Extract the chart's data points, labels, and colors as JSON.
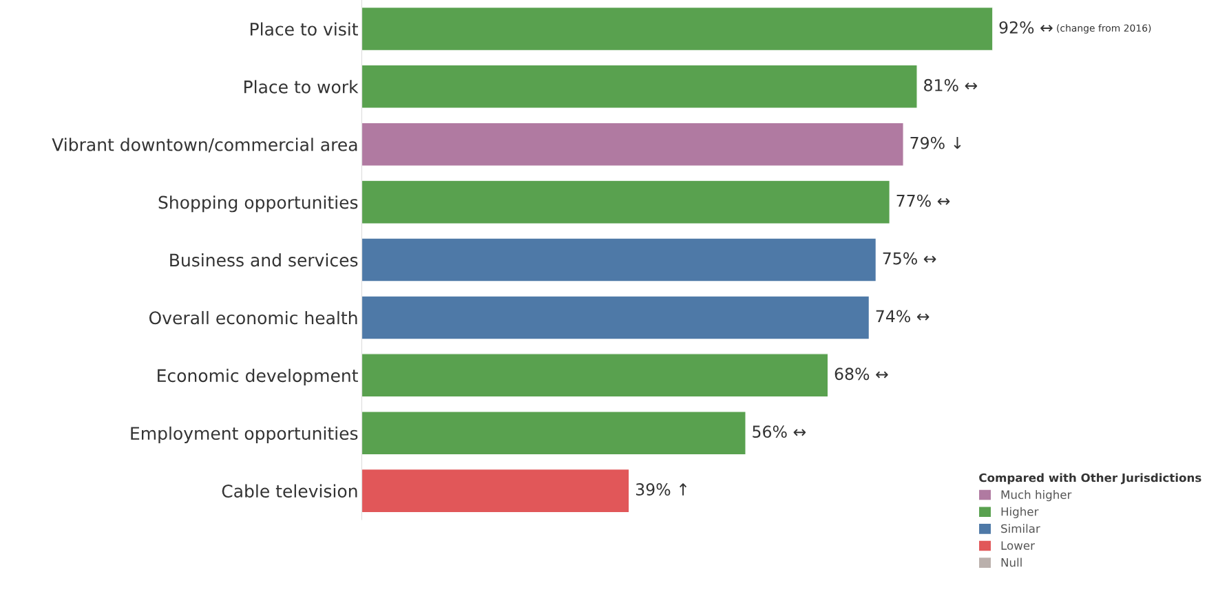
{
  "chart_data": {
    "type": "bar",
    "orientation": "horizontal",
    "categories": [
      "Place to visit",
      "Place to work",
      "Vibrant downtown/commercial area",
      "Shopping opportunities",
      "Business and services",
      "Overall economic health",
      "Economic development",
      "Employment opportunities",
      "Cable television"
    ],
    "series": [
      {
        "name": "Much higher",
        "color": "#b07aa1",
        "values": [
          null,
          null,
          79,
          null,
          null,
          null,
          null,
          null,
          null
        ],
        "value_labels": [
          null,
          null,
          "79% ↓",
          null,
          null,
          null,
          null,
          null,
          null
        ]
      },
      {
        "name": "Higher",
        "color": "#59a14f",
        "values": [
          92,
          81,
          null,
          77,
          null,
          null,
          68,
          56,
          null
        ],
        "value_labels": [
          "92% ↔",
          "81% ↔",
          null,
          "77% ↔",
          null,
          null,
          "68% ↔",
          "56% ↔",
          null
        ]
      },
      {
        "name": "Similar",
        "color": "#4e79a7",
        "values": [
          null,
          null,
          null,
          null,
          75,
          74,
          null,
          null,
          null
        ],
        "value_labels": [
          null,
          null,
          null,
          null,
          "75% ↔",
          "74% ↔",
          null,
          null,
          null
        ]
      },
      {
        "name": "Lower",
        "color": "#e15759",
        "values": [
          null,
          null,
          null,
          null,
          null,
          null,
          null,
          null,
          39
        ],
        "value_labels": [
          null,
          null,
          null,
          null,
          null,
          null,
          null,
          null,
          "39% ↑"
        ]
      },
      {
        "name": "Null",
        "color": "#bab0ac",
        "values": [
          null,
          null,
          null,
          null,
          null,
          null,
          null,
          null,
          null
        ],
        "value_labels": [
          null,
          null,
          null,
          null,
          null,
          null,
          null,
          null,
          null
        ]
      }
    ],
    "tick_labels": "y",
    "grid": false,
    "legend": "bottom right",
    "legend_title": "Compared with Other Jurisdictions",
    "annotations": [
      "(change from 2016)"
    ]
  }
}
